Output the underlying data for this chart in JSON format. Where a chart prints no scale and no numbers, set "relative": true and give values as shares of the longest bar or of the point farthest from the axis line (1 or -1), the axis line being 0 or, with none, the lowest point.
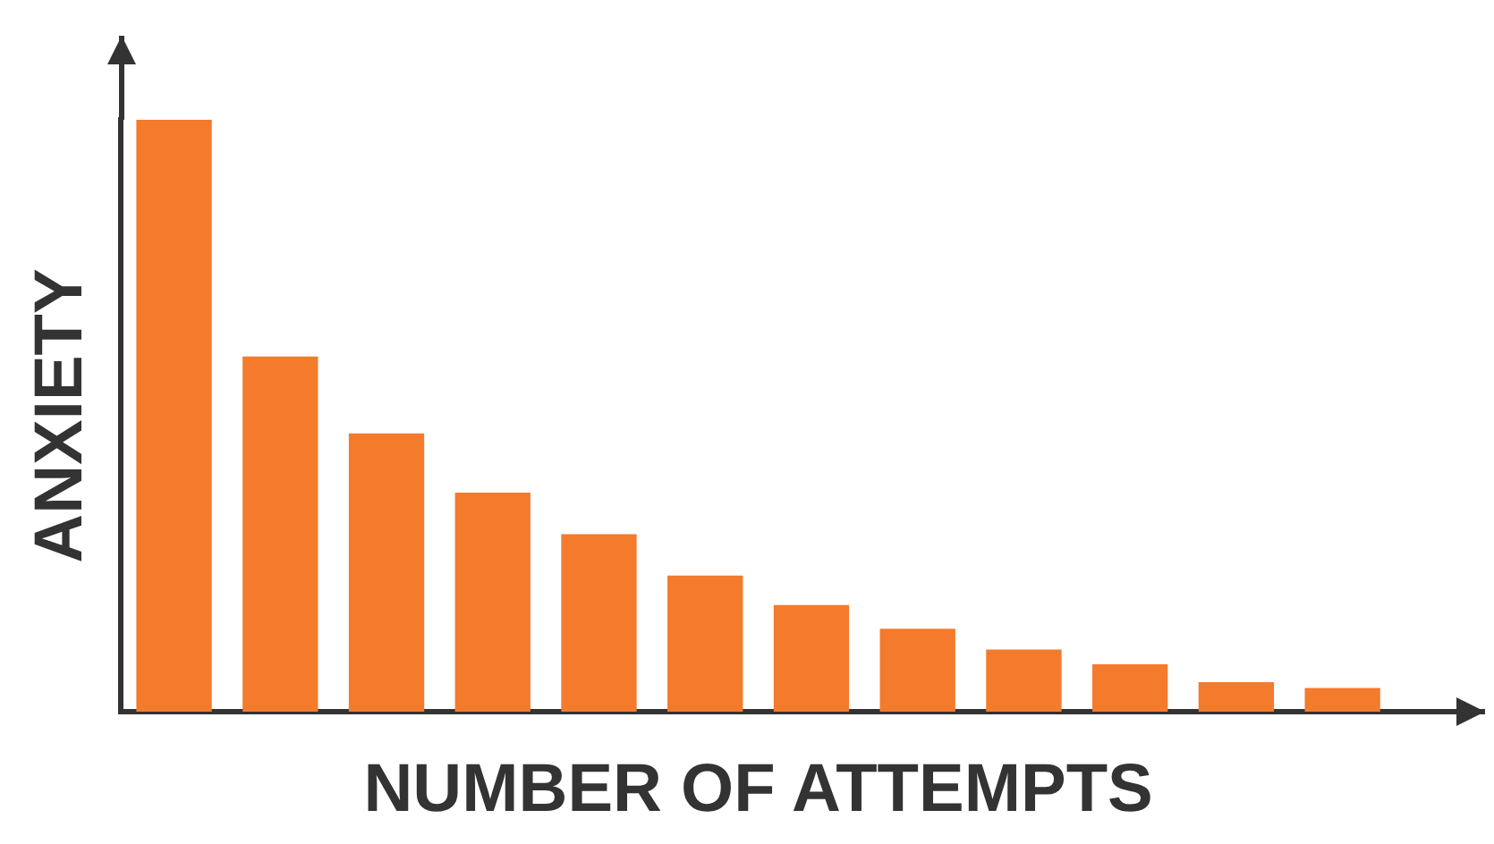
{
  "chart_data": {
    "type": "bar",
    "relative": true,
    "xlabel": "NUMBER OF ATTEMPTS",
    "ylabel": "ANXIETY",
    "categories": [
      null,
      null,
      null,
      null,
      null,
      null,
      null,
      null,
      null,
      null,
      null,
      null
    ],
    "values": [
      1,
      0.6,
      0.47,
      0.37,
      0.3,
      0.23,
      0.18,
      0.14,
      0.105,
      0.08,
      0.05,
      0.04
    ],
    "color": "#f47a2c",
    "grid": false,
    "legend": false
  }
}
